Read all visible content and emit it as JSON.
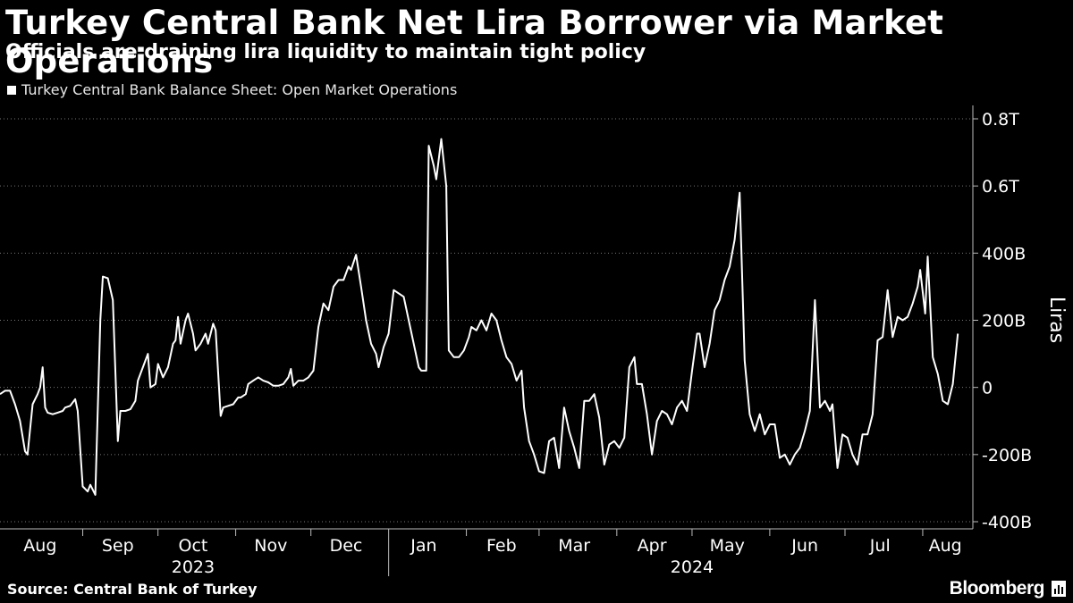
{
  "title": "Turkey Central Bank Net Lira Borrower via Market Operations",
  "subtitle": "Officials are draining lira liquidity to maintain tight policy",
  "legend": "Turkey Central Bank Balance Sheet: Open Market Operations",
  "source": "Source: Central Bank of Turkey",
  "brand": "Bloomberg",
  "colors": {
    "background": "#000000",
    "line": "#ffffff",
    "grid": "#777777",
    "text": "#ffffff"
  },
  "chart_data": {
    "type": "line",
    "ylabel": "Liras",
    "ylim": [
      -400,
      800
    ],
    "yticks": [
      {
        "value": 800,
        "label": "0.8T"
      },
      {
        "value": 600,
        "label": "0.6T"
      },
      {
        "value": 400,
        "label": "400B"
      },
      {
        "value": 200,
        "label": "200B"
      },
      {
        "value": 0,
        "label": "0"
      },
      {
        "value": -200,
        "label": "-200B"
      },
      {
        "value": -400,
        "label": "-400B"
      }
    ],
    "grid": true,
    "xlim": [
      "2023-07-30",
      "2024-08-16"
    ],
    "xticks": [
      {
        "date": "2023-08-15",
        "label": "Aug"
      },
      {
        "date": "2023-09-15",
        "label": "Sep"
      },
      {
        "date": "2023-10-15",
        "label": "Oct"
      },
      {
        "date": "2023-11-15",
        "label": "Nov"
      },
      {
        "date": "2023-12-15",
        "label": "Dec"
      },
      {
        "date": "2024-01-15",
        "label": "Jan"
      },
      {
        "date": "2024-02-15",
        "label": "Feb"
      },
      {
        "date": "2024-03-15",
        "label": "Mar"
      },
      {
        "date": "2024-04-15",
        "label": "Apr"
      },
      {
        "date": "2024-05-15",
        "label": "May"
      },
      {
        "date": "2024-06-15",
        "label": "Jun"
      },
      {
        "date": "2024-07-15",
        "label": "Jul"
      },
      {
        "date": "2024-08-10",
        "label": "Aug"
      }
    ],
    "year_labels": [
      {
        "date": "2023-10-15",
        "label": "2023"
      },
      {
        "date": "2024-05-01",
        "label": "2024"
      }
    ],
    "year_divider": "2024-01-01",
    "month_separators": [
      "2023-09-01",
      "2023-10-01",
      "2023-11-01",
      "2023-12-01",
      "2024-02-01",
      "2024-03-01",
      "2024-04-01",
      "2024-05-01",
      "2024-06-01",
      "2024-07-01",
      "2024-08-01"
    ],
    "series": [
      {
        "values": [
          [
            "2023-07-30",
            -20
          ],
          [
            "2023-08-01",
            -10
          ],
          [
            "2023-08-03",
            -10
          ],
          [
            "2023-08-05",
            -50
          ],
          [
            "2023-08-07",
            -100
          ],
          [
            "2023-08-09",
            -190
          ],
          [
            "2023-08-10",
            -200
          ],
          [
            "2023-08-12",
            -50
          ],
          [
            "2023-08-14",
            -20
          ],
          [
            "2023-08-15",
            0
          ],
          [
            "2023-08-16",
            60
          ],
          [
            "2023-08-17",
            -60
          ],
          [
            "2023-08-18",
            -75
          ],
          [
            "2023-08-20",
            -80
          ],
          [
            "2023-08-22",
            -75
          ],
          [
            "2023-08-24",
            -70
          ],
          [
            "2023-08-25",
            -60
          ],
          [
            "2023-08-27",
            -55
          ],
          [
            "2023-08-29",
            -35
          ],
          [
            "2023-08-30",
            -70
          ],
          [
            "2023-09-01",
            -295
          ],
          [
            "2023-09-03",
            -310
          ],
          [
            "2023-09-04",
            -290
          ],
          [
            "2023-09-06",
            -320
          ],
          [
            "2023-09-08",
            200
          ],
          [
            "2023-09-09",
            330
          ],
          [
            "2023-09-11",
            325
          ],
          [
            "2023-09-13",
            260
          ],
          [
            "2023-09-15",
            -160
          ],
          [
            "2023-09-16",
            -70
          ],
          [
            "2023-09-18",
            -70
          ],
          [
            "2023-09-20",
            -65
          ],
          [
            "2023-09-22",
            -40
          ],
          [
            "2023-09-23",
            20
          ],
          [
            "2023-09-25",
            60
          ],
          [
            "2023-09-27",
            100
          ],
          [
            "2023-09-28",
            0
          ],
          [
            "2023-09-30",
            10
          ],
          [
            "2023-10-01",
            70
          ],
          [
            "2023-10-03",
            30
          ],
          [
            "2023-10-05",
            60
          ],
          [
            "2023-10-07",
            130
          ],
          [
            "2023-10-08",
            140
          ],
          [
            "2023-10-09",
            210
          ],
          [
            "2023-10-10",
            130
          ],
          [
            "2023-10-12",
            200
          ],
          [
            "2023-10-13",
            220
          ],
          [
            "2023-10-15",
            160
          ],
          [
            "2023-10-16",
            110
          ],
          [
            "2023-10-18",
            130
          ],
          [
            "2023-10-20",
            160
          ],
          [
            "2023-10-21",
            130
          ],
          [
            "2023-10-23",
            190
          ],
          [
            "2023-10-24",
            170
          ],
          [
            "2023-10-26",
            -85
          ],
          [
            "2023-10-27",
            -60
          ],
          [
            "2023-10-29",
            -55
          ],
          [
            "2023-10-31",
            -50
          ],
          [
            "2023-11-02",
            -30
          ],
          [
            "2023-11-03",
            -30
          ],
          [
            "2023-11-05",
            -20
          ],
          [
            "2023-11-06",
            10
          ],
          [
            "2023-11-08",
            20
          ],
          [
            "2023-11-10",
            30
          ],
          [
            "2023-11-12",
            20
          ],
          [
            "2023-11-14",
            15
          ],
          [
            "2023-11-16",
            5
          ],
          [
            "2023-11-18",
            5
          ],
          [
            "2023-11-20",
            10
          ],
          [
            "2023-11-22",
            30
          ],
          [
            "2023-11-23",
            55
          ],
          [
            "2023-11-24",
            5
          ],
          [
            "2023-11-26",
            20
          ],
          [
            "2023-11-28",
            20
          ],
          [
            "2023-11-30",
            30
          ],
          [
            "2023-12-02",
            50
          ],
          [
            "2023-12-04",
            180
          ],
          [
            "2023-12-06",
            250
          ],
          [
            "2023-12-08",
            230
          ],
          [
            "2023-12-10",
            300
          ],
          [
            "2023-12-12",
            320
          ],
          [
            "2023-12-14",
            320
          ],
          [
            "2023-12-16",
            360
          ],
          [
            "2023-12-17",
            350
          ],
          [
            "2023-12-19",
            395
          ],
          [
            "2023-12-21",
            300
          ],
          [
            "2023-12-23",
            200
          ],
          [
            "2023-12-25",
            130
          ],
          [
            "2023-12-27",
            100
          ],
          [
            "2023-12-28",
            60
          ],
          [
            "2023-12-30",
            120
          ],
          [
            "2024-01-01",
            160
          ],
          [
            "2024-01-03",
            290
          ],
          [
            "2024-01-05",
            280
          ],
          [
            "2024-01-07",
            270
          ],
          [
            "2024-01-09",
            200
          ],
          [
            "2024-01-11",
            130
          ],
          [
            "2024-01-13",
            60
          ],
          [
            "2024-01-14",
            50
          ],
          [
            "2024-01-16",
            50
          ],
          [
            "2024-01-17",
            720
          ],
          [
            "2024-01-19",
            660
          ],
          [
            "2024-01-20",
            620
          ],
          [
            "2024-01-22",
            740
          ],
          [
            "2024-01-24",
            600
          ],
          [
            "2024-01-25",
            110
          ],
          [
            "2024-01-27",
            90
          ],
          [
            "2024-01-29",
            90
          ],
          [
            "2024-01-31",
            110
          ],
          [
            "2024-02-02",
            150
          ],
          [
            "2024-02-03",
            180
          ],
          [
            "2024-02-05",
            170
          ],
          [
            "2024-02-07",
            200
          ],
          [
            "2024-02-09",
            170
          ],
          [
            "2024-02-11",
            220
          ],
          [
            "2024-02-13",
            200
          ],
          [
            "2024-02-15",
            140
          ],
          [
            "2024-02-17",
            90
          ],
          [
            "2024-02-19",
            70
          ],
          [
            "2024-02-21",
            20
          ],
          [
            "2024-02-23",
            50
          ],
          [
            "2024-02-24",
            -60
          ],
          [
            "2024-02-26",
            -160
          ],
          [
            "2024-02-28",
            -200
          ],
          [
            "2024-03-01",
            -250
          ],
          [
            "2024-03-03",
            -255
          ],
          [
            "2024-03-05",
            -160
          ],
          [
            "2024-03-07",
            -150
          ],
          [
            "2024-03-09",
            -240
          ],
          [
            "2024-03-11",
            -60
          ],
          [
            "2024-03-13",
            -130
          ],
          [
            "2024-03-15",
            -180
          ],
          [
            "2024-03-17",
            -240
          ],
          [
            "2024-03-19",
            -40
          ],
          [
            "2024-03-21",
            -40
          ],
          [
            "2024-03-23",
            -20
          ],
          [
            "2024-03-25",
            -90
          ],
          [
            "2024-03-27",
            -230
          ],
          [
            "2024-03-29",
            -170
          ],
          [
            "2024-03-31",
            -160
          ],
          [
            "2024-04-02",
            -180
          ],
          [
            "2024-04-04",
            -150
          ],
          [
            "2024-04-06",
            60
          ],
          [
            "2024-04-08",
            90
          ],
          [
            "2024-04-09",
            10
          ],
          [
            "2024-04-11",
            10
          ],
          [
            "2024-04-13",
            -80
          ],
          [
            "2024-04-15",
            -200
          ],
          [
            "2024-04-17",
            -100
          ],
          [
            "2024-04-19",
            -70
          ],
          [
            "2024-04-21",
            -80
          ],
          [
            "2024-04-23",
            -110
          ],
          [
            "2024-04-25",
            -60
          ],
          [
            "2024-04-27",
            -40
          ],
          [
            "2024-04-29",
            -70
          ],
          [
            "2024-05-01",
            50
          ],
          [
            "2024-05-03",
            160
          ],
          [
            "2024-05-04",
            160
          ],
          [
            "2024-05-06",
            60
          ],
          [
            "2024-05-08",
            130
          ],
          [
            "2024-05-10",
            230
          ],
          [
            "2024-05-12",
            260
          ],
          [
            "2024-05-14",
            320
          ],
          [
            "2024-05-16",
            360
          ],
          [
            "2024-05-18",
            440
          ],
          [
            "2024-05-20",
            580
          ],
          [
            "2024-05-22",
            80
          ],
          [
            "2024-05-24",
            -80
          ],
          [
            "2024-05-26",
            -130
          ],
          [
            "2024-05-28",
            -80
          ],
          [
            "2024-05-30",
            -140
          ],
          [
            "2024-06-01",
            -110
          ],
          [
            "2024-06-03",
            -110
          ],
          [
            "2024-06-05",
            -210
          ],
          [
            "2024-06-07",
            -200
          ],
          [
            "2024-06-09",
            -230
          ],
          [
            "2024-06-11",
            -200
          ],
          [
            "2024-06-13",
            -180
          ],
          [
            "2024-06-15",
            -130
          ],
          [
            "2024-06-17",
            -70
          ],
          [
            "2024-06-19",
            260
          ],
          [
            "2024-06-21",
            -60
          ],
          [
            "2024-06-23",
            -40
          ],
          [
            "2024-06-25",
            -70
          ],
          [
            "2024-06-26",
            -50
          ],
          [
            "2024-06-28",
            -240
          ],
          [
            "2024-06-30",
            -140
          ],
          [
            "2024-07-02",
            -150
          ],
          [
            "2024-07-04",
            -200
          ],
          [
            "2024-07-06",
            -230
          ],
          [
            "2024-07-08",
            -140
          ],
          [
            "2024-07-10",
            -140
          ],
          [
            "2024-07-12",
            -80
          ],
          [
            "2024-07-14",
            140
          ],
          [
            "2024-07-16",
            150
          ],
          [
            "2024-07-18",
            290
          ],
          [
            "2024-07-20",
            150
          ],
          [
            "2024-07-22",
            210
          ],
          [
            "2024-07-24",
            200
          ],
          [
            "2024-07-26",
            210
          ],
          [
            "2024-07-28",
            250
          ],
          [
            "2024-07-30",
            300
          ],
          [
            "2024-07-31",
            350
          ],
          [
            "2024-08-02",
            220
          ],
          [
            "2024-08-03",
            390
          ],
          [
            "2024-08-05",
            90
          ],
          [
            "2024-08-07",
            40
          ],
          [
            "2024-08-09",
            -40
          ],
          [
            "2024-08-11",
            -50
          ],
          [
            "2024-08-13",
            10
          ],
          [
            "2024-08-15",
            160
          ]
        ]
      }
    ]
  }
}
